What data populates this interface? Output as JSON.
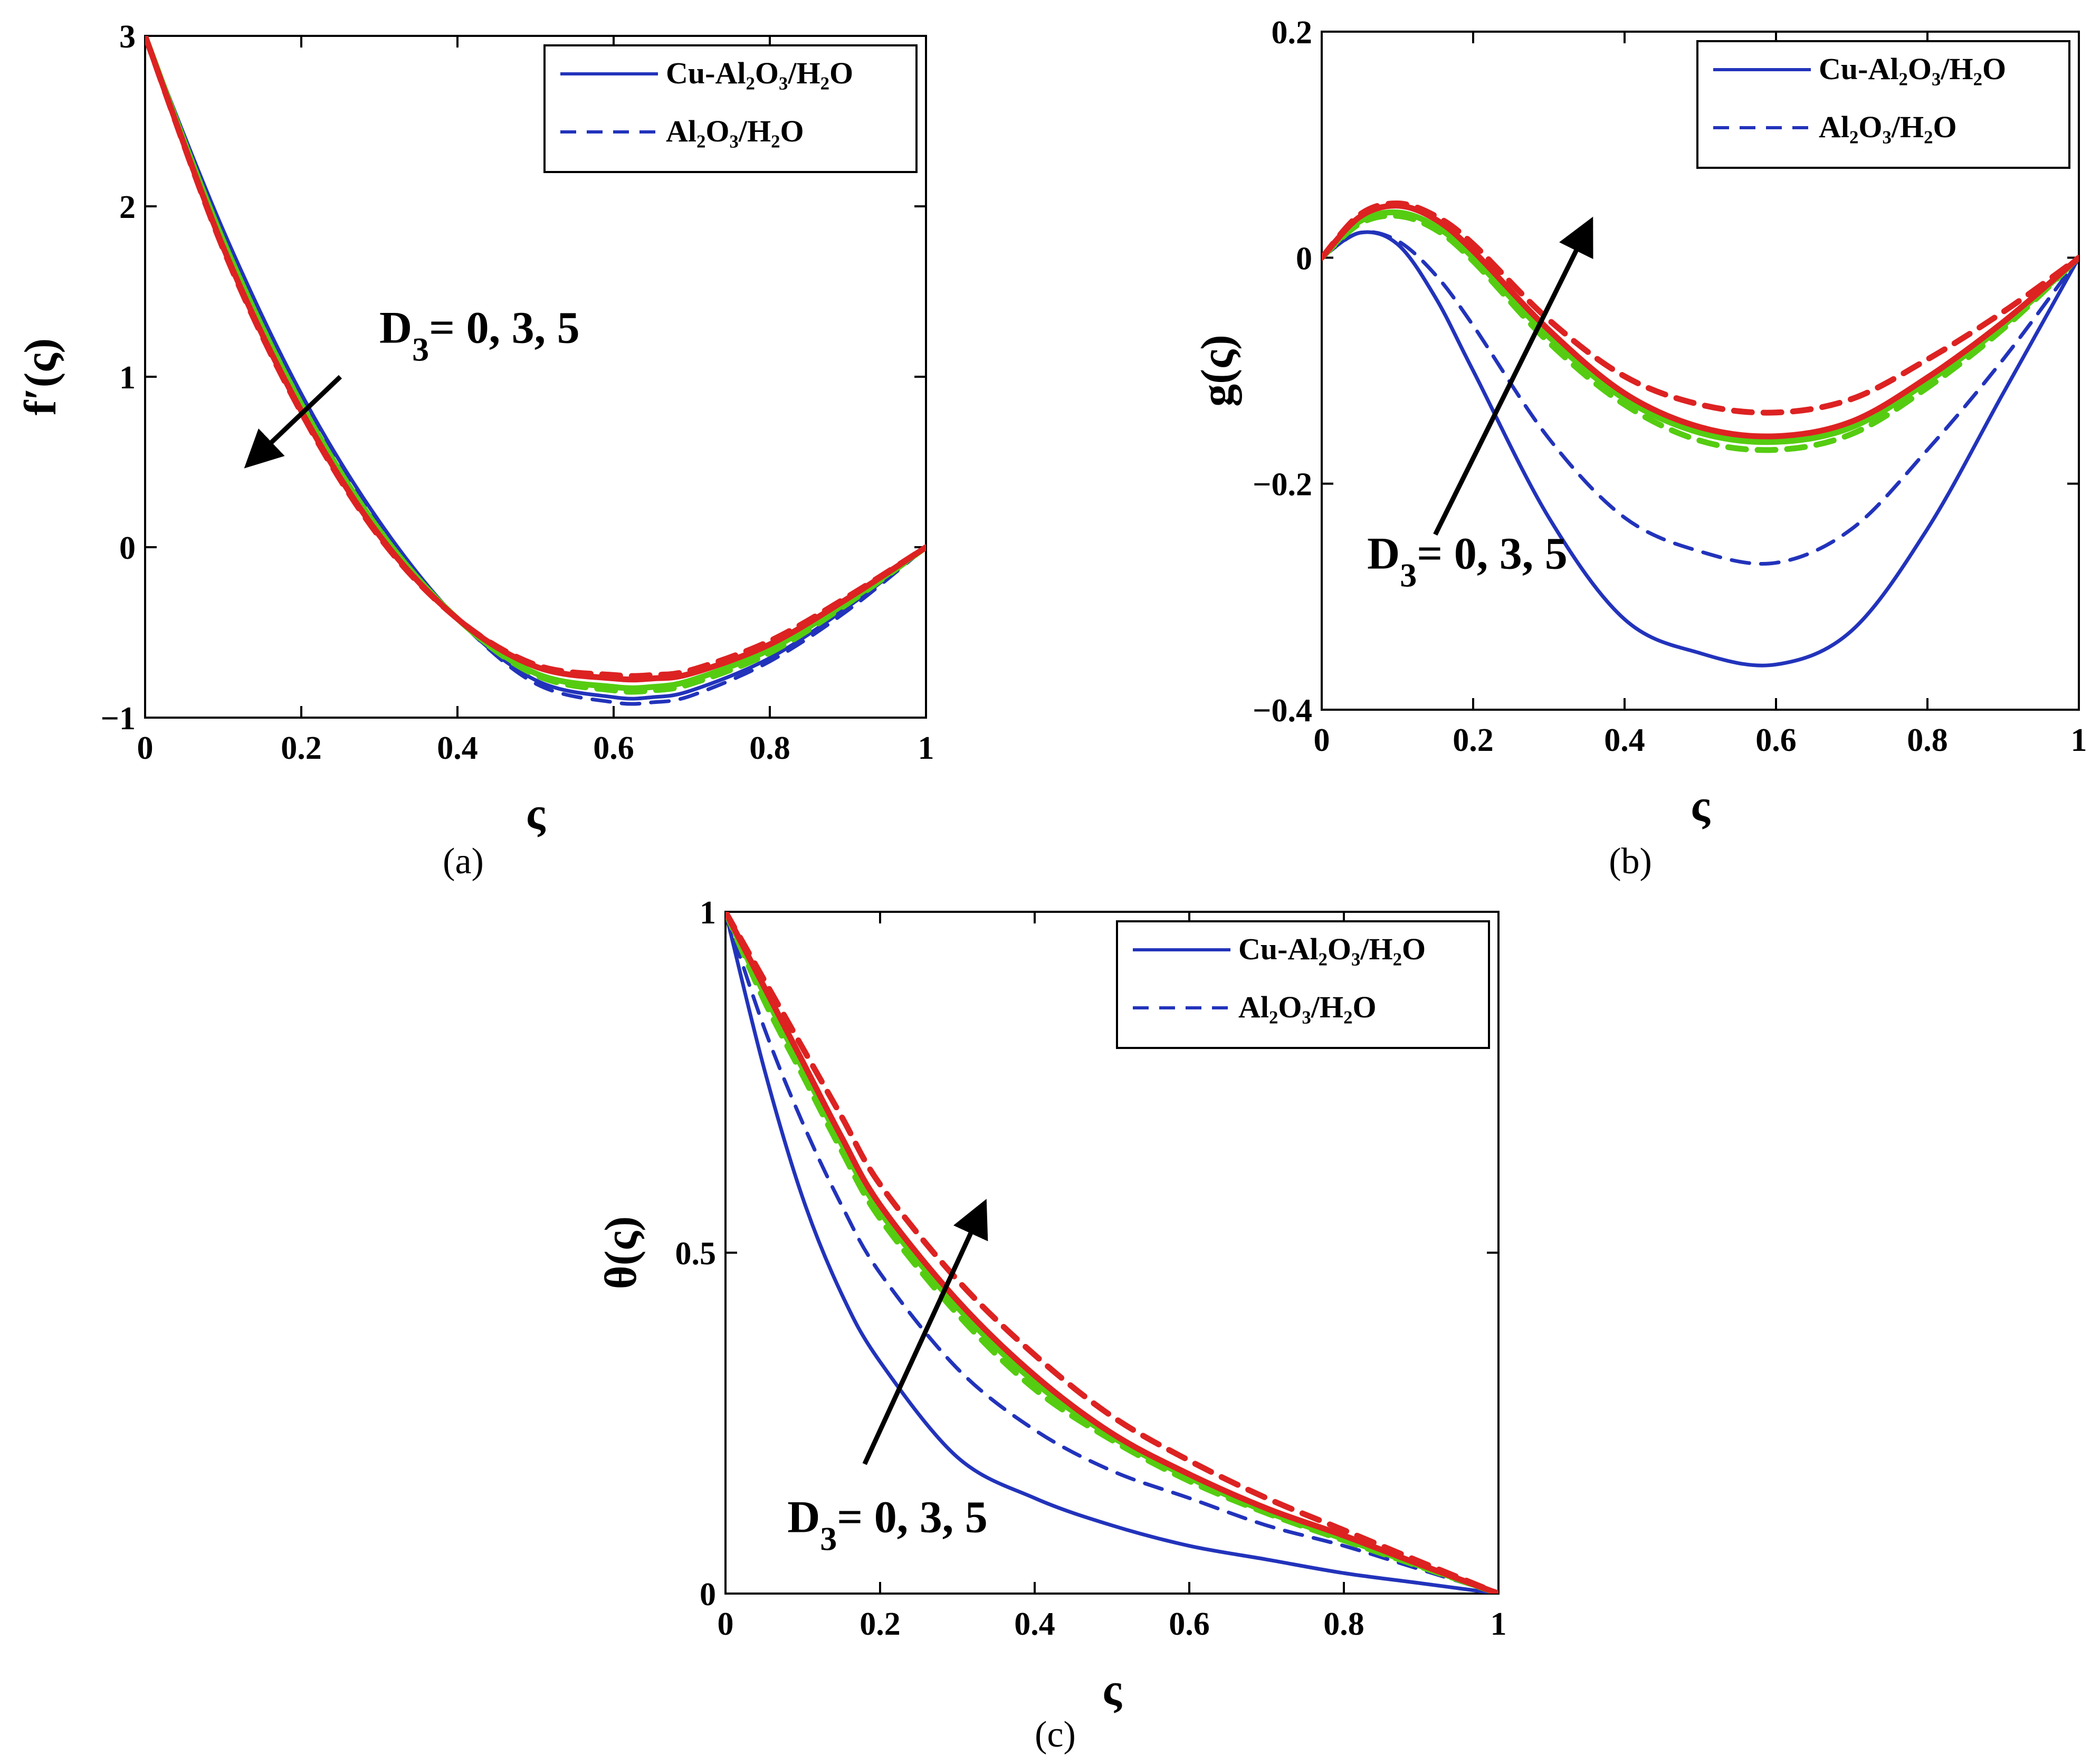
{
  "chart_data": [
    {
      "id": "a",
      "type": "line",
      "caption": "(a)",
      "xlabel": "ς",
      "ylabel": "f′(ς)",
      "xlim": [
        0,
        1
      ],
      "ylim": [
        -1,
        3
      ],
      "xticks": [
        0,
        0.2,
        0.4,
        0.6,
        0.8,
        1
      ],
      "xtick_labels": [
        "0",
        "0.2",
        "0.4",
        "0.6",
        "0.8",
        "1"
      ],
      "yticks": [
        -1,
        0,
        1,
        2,
        3
      ],
      "ytick_labels": [
        "−1",
        "0",
        "1",
        "2",
        "3"
      ],
      "legend": {
        "position": "top-right",
        "entries": [
          {
            "label": "Cu-Al₂O₃/H₂O",
            "style": "solid"
          },
          {
            "label": "Al₂O₃/H₂O",
            "style": "dashed"
          }
        ]
      },
      "annotation": {
        "D": "D",
        "sub": "3",
        "rest": "= 0, 3, 5",
        "x": 0.3,
        "y": 1.2,
        "arrow_from": [
          0.25,
          1.0
        ],
        "arrow_to": [
          0.14,
          0.52
        ]
      },
      "x": [
        0,
        0.1,
        0.2,
        0.3,
        0.4,
        0.5,
        0.6,
        0.65,
        0.7,
        0.8,
        0.9,
        1.0
      ],
      "series": [
        {
          "name": "Cu-Al₂O₃/H₂O, D₃=0",
          "color": "#2233bb",
          "style": "solid",
          "values": [
            3.0,
            1.86,
            0.9,
            0.15,
            -0.42,
            -0.78,
            -0.88,
            -0.88,
            -0.84,
            -0.65,
            -0.35,
            0.0
          ]
        },
        {
          "name": "Al₂O₃/H₂O, D₃=0",
          "color": "#2233bb",
          "style": "dashed",
          "values": [
            3.0,
            1.83,
            0.86,
            0.12,
            -0.42,
            -0.8,
            -0.91,
            -0.91,
            -0.87,
            -0.67,
            -0.37,
            0.0
          ]
        },
        {
          "name": "Cu-Al₂O₃/H₂O, D₃=3",
          "color": "#55cc11",
          "style": "solid",
          "values": [
            3.0,
            1.8,
            0.84,
            0.1,
            -0.42,
            -0.74,
            -0.82,
            -0.82,
            -0.78,
            -0.6,
            -0.32,
            0.0
          ]
        },
        {
          "name": "Al₂O₃/H₂O, D₃=3",
          "color": "#55cc11",
          "style": "dashed",
          "values": [
            3.0,
            1.79,
            0.83,
            0.09,
            -0.42,
            -0.75,
            -0.84,
            -0.84,
            -0.8,
            -0.62,
            -0.33,
            0.0
          ]
        },
        {
          "name": "Cu-Al₂O₃/H₂O, D₃=5",
          "color": "#dd2222",
          "style": "solid",
          "values": [
            3.0,
            1.76,
            0.8,
            0.07,
            -0.42,
            -0.7,
            -0.77,
            -0.77,
            -0.74,
            -0.57,
            -0.3,
            0.0
          ]
        },
        {
          "name": "Al₂O₃/H₂O, D₃=5",
          "color": "#dd2222",
          "style": "dashed",
          "values": [
            3.0,
            1.75,
            0.79,
            0.06,
            -0.42,
            -0.69,
            -0.75,
            -0.75,
            -0.72,
            -0.55,
            -0.29,
            0.0
          ]
        }
      ]
    },
    {
      "id": "b",
      "type": "line",
      "caption": "(b)",
      "xlabel": "ς",
      "ylabel": "g(ς)",
      "xlim": [
        0,
        1
      ],
      "ylim": [
        -0.4,
        0.2
      ],
      "xticks": [
        0,
        0.2,
        0.4,
        0.6,
        0.8,
        1
      ],
      "xtick_labels": [
        "0",
        "0.2",
        "0.4",
        "0.6",
        "0.8",
        "1"
      ],
      "yticks": [
        -0.4,
        -0.2,
        0,
        0.2
      ],
      "ytick_labels": [
        "−0.4",
        "−0.2",
        "0",
        "0.2"
      ],
      "legend": {
        "position": "top-right",
        "entries": [
          {
            "label": "Cu-Al₂O₃/H₂O",
            "style": "solid"
          },
          {
            "label": "Al₂O₃/H₂O",
            "style": "dashed"
          }
        ]
      },
      "annotation": {
        "D": "D",
        "sub": "3",
        "rest": "= 0, 3, 5",
        "x": 0.06,
        "y": -0.275,
        "arrow_from": [
          0.15,
          -0.245
        ],
        "arrow_to": [
          0.35,
          0.025
        ]
      },
      "x": [
        0,
        0.05,
        0.1,
        0.15,
        0.2,
        0.3,
        0.4,
        0.5,
        0.6,
        0.7,
        0.8,
        0.9,
        1.0
      ],
      "series": [
        {
          "name": "Cu-Al₂O₃/H₂O, D₃=0",
          "color": "#2233bb",
          "style": "solid",
          "values": [
            0.0,
            0.022,
            0.012,
            -0.035,
            -0.1,
            -0.23,
            -0.32,
            -0.35,
            -0.36,
            -0.33,
            -0.24,
            -0.12,
            0.0
          ]
        },
        {
          "name": "Al₂O₃/H₂O, D₃=0",
          "color": "#2233bb",
          "style": "dashed",
          "values": [
            0.0,
            0.022,
            0.015,
            -0.015,
            -0.06,
            -0.16,
            -0.23,
            -0.26,
            -0.27,
            -0.24,
            -0.17,
            -0.09,
            0.0
          ]
        },
        {
          "name": "Cu-Al₂O₃/H₂O, D₃=3",
          "color": "#55cc11",
          "style": "solid",
          "values": [
            0.0,
            0.032,
            0.04,
            0.028,
            0.0,
            -0.07,
            -0.125,
            -0.155,
            -0.163,
            -0.15,
            -0.11,
            -0.06,
            0.0
          ]
        },
        {
          "name": "Al₂O₃/H₂O, D₃=3",
          "color": "#55cc11",
          "style": "dashed",
          "values": [
            0.0,
            0.03,
            0.037,
            0.025,
            -0.003,
            -0.075,
            -0.13,
            -0.162,
            -0.17,
            -0.156,
            -0.115,
            -0.063,
            0.0
          ]
        },
        {
          "name": "Cu-Al₂O₃/H₂O, D₃=5",
          "color": "#dd2222",
          "style": "solid",
          "values": [
            0.0,
            0.036,
            0.046,
            0.034,
            0.006,
            -0.064,
            -0.12,
            -0.15,
            -0.158,
            -0.145,
            -0.106,
            -0.057,
            0.0
          ]
        },
        {
          "name": "Al₂O₃/H₂O, D₃=5",
          "color": "#dd2222",
          "style": "dashed",
          "values": [
            0.0,
            0.038,
            0.048,
            0.037,
            0.012,
            -0.055,
            -0.105,
            -0.13,
            -0.137,
            -0.125,
            -0.09,
            -0.048,
            0.0
          ]
        }
      ]
    },
    {
      "id": "c",
      "type": "line",
      "caption": "(c)",
      "xlabel": "ς",
      "ylabel": "θ(ς)",
      "xlim": [
        0,
        1
      ],
      "ylim": [
        0,
        1
      ],
      "xticks": [
        0,
        0.2,
        0.4,
        0.6,
        0.8,
        1
      ],
      "xtick_labels": [
        "0",
        "0.2",
        "0.4",
        "0.6",
        "0.8",
        "1"
      ],
      "yticks": [
        0,
        0.5,
        1
      ],
      "ytick_labels": [
        "0",
        "0.5",
        "1"
      ],
      "legend": {
        "position": "top-right",
        "entries": [
          {
            "label": "Cu-Al₂O₃/H₂O",
            "style": "solid"
          },
          {
            "label": "Al₂O₃/H₂O",
            "style": "dashed"
          }
        ]
      },
      "annotation": {
        "D": "D",
        "sub": "3",
        "rest": "= 0, 3, 5",
        "x": 0.08,
        "y": 0.09,
        "arrow_from": [
          0.18,
          0.19
        ],
        "arrow_to": [
          0.33,
          0.56
        ]
      },
      "x": [
        0,
        0.05,
        0.1,
        0.15,
        0.2,
        0.3,
        0.4,
        0.5,
        0.6,
        0.7,
        0.8,
        0.9,
        1.0
      ],
      "series": [
        {
          "name": "Cu-Al₂O₃/H₂O, D₃=0",
          "color": "#2233bb",
          "style": "solid",
          "values": [
            1.0,
            0.77,
            0.58,
            0.44,
            0.34,
            0.2,
            0.14,
            0.1,
            0.07,
            0.05,
            0.03,
            0.015,
            0.0
          ]
        },
        {
          "name": "Al₂O₃/H₂O, D₃=0",
          "color": "#2233bb",
          "style": "dashed",
          "values": [
            1.0,
            0.83,
            0.69,
            0.57,
            0.47,
            0.33,
            0.24,
            0.18,
            0.14,
            0.1,
            0.07,
            0.035,
            0.0
          ]
        },
        {
          "name": "Cu-Al₂O₃/H₂O, D₃=3",
          "color": "#55cc11",
          "style": "solid",
          "values": [
            1.0,
            0.88,
            0.77,
            0.66,
            0.56,
            0.42,
            0.31,
            0.23,
            0.17,
            0.12,
            0.08,
            0.04,
            0.0
          ]
        },
        {
          "name": "Al₂O₃/H₂O, D₃=3",
          "color": "#55cc11",
          "style": "dashed",
          "values": [
            1.0,
            0.87,
            0.76,
            0.65,
            0.55,
            0.41,
            0.3,
            0.225,
            0.165,
            0.118,
            0.078,
            0.039,
            0.0
          ]
        },
        {
          "name": "Cu-Al₂O₃/H₂O, D₃=5",
          "color": "#dd2222",
          "style": "solid",
          "values": [
            1.0,
            0.89,
            0.78,
            0.67,
            0.57,
            0.43,
            0.32,
            0.235,
            0.175,
            0.125,
            0.085,
            0.042,
            0.0
          ]
        },
        {
          "name": "Al₂O₃/H₂O, D₃=5",
          "color": "#dd2222",
          "style": "dashed",
          "values": [
            1.0,
            0.9,
            0.8,
            0.7,
            0.6,
            0.46,
            0.35,
            0.26,
            0.195,
            0.14,
            0.093,
            0.046,
            0.0
          ]
        }
      ]
    }
  ]
}
